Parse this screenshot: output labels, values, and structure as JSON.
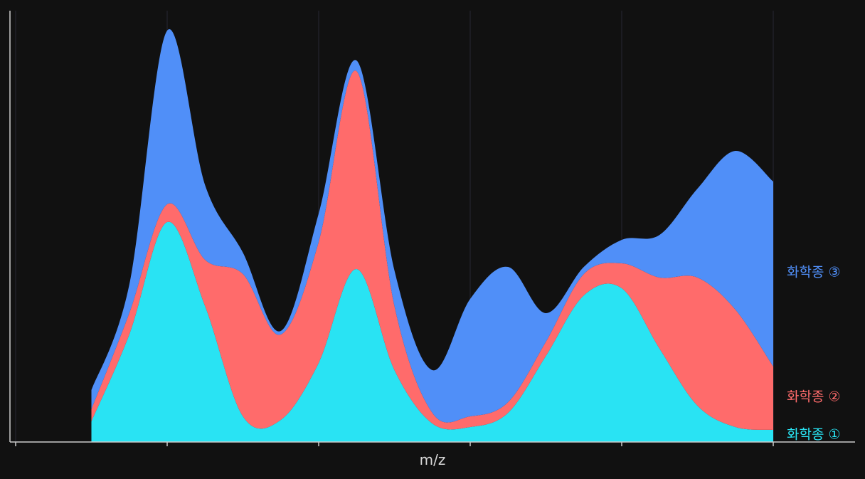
{
  "chart_data": {
    "type": "stacked-area",
    "x_label": "m/z",
    "x": [
      0.5,
      0.75,
      1,
      1.25,
      1.5,
      1.75,
      2,
      2.25,
      2.5,
      2.75,
      3,
      3.25,
      3.5,
      3.75,
      4,
      4.25,
      4.5,
      4.75,
      5
    ],
    "xlim": [
      0,
      5
    ],
    "xticks": [
      0,
      1,
      2,
      3,
      4,
      5
    ],
    "ylim": [
      0,
      606
    ],
    "grid": true,
    "series": [
      {
        "name": "화학종 ①",
        "color": "#29e3f3",
        "values": [
          29,
          151,
          309,
          191,
          36,
          31,
          111,
          243,
          101,
          26,
          21,
          41,
          121,
          206,
          216,
          131,
          51,
          21,
          17
        ]
      },
      {
        "name": "화학종 ②",
        "color": "#ff6b6b",
        "values": [
          17,
          30,
          25,
          65,
          200,
          120,
          170,
          278,
          90,
          15,
          15,
          15,
          20,
          30,
          35,
          100,
          180,
          165,
          89
        ]
      },
      {
        "name": "화학종 ③",
        "color": "#508ff8",
        "values": [
          27,
          40,
          244,
          105,
          30,
          5,
          40,
          15,
          50,
          60,
          165,
          190,
          40,
          10,
          33,
          60,
          125,
          223,
          260
        ]
      }
    ]
  }
}
